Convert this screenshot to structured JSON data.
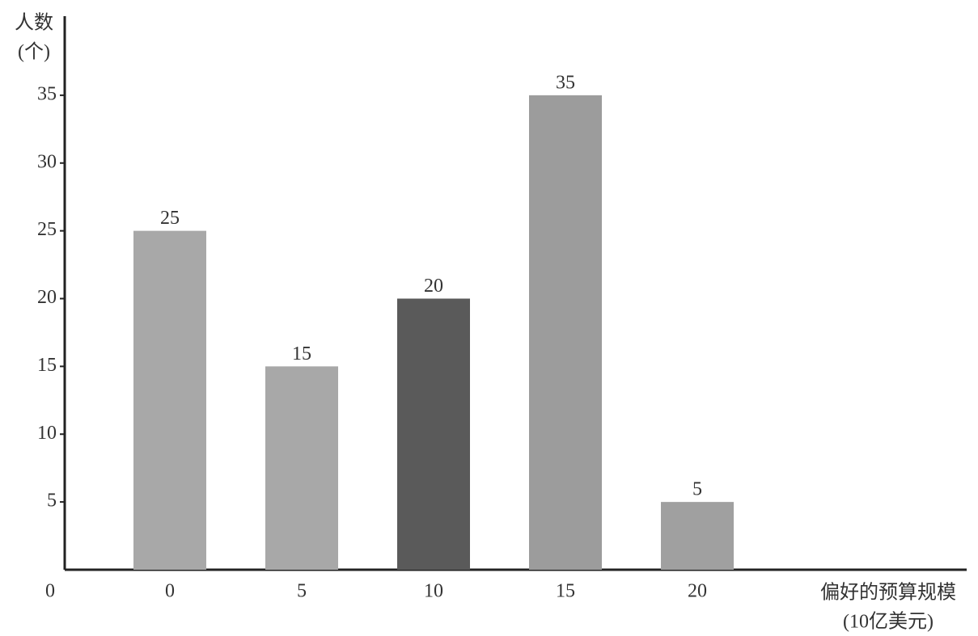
{
  "chart_data": {
    "type": "bar",
    "y_label": [
      "人数",
      "(个)"
    ],
    "x_label": [
      "偏好的预算规模",
      "(10亿美元)"
    ],
    "categories": [
      "0",
      "5",
      "10",
      "15",
      "20"
    ],
    "values": [
      25,
      15,
      20,
      35,
      5
    ],
    "colors": [
      "#a8a8a8",
      "#a8a8a8",
      "#5a5a5a",
      "#9c9c9c",
      "#a0a0a0"
    ],
    "ylim": [
      0,
      40
    ],
    "yticks": [
      0,
      5,
      10,
      15,
      20,
      25,
      30,
      35
    ],
    "grid": false
  }
}
